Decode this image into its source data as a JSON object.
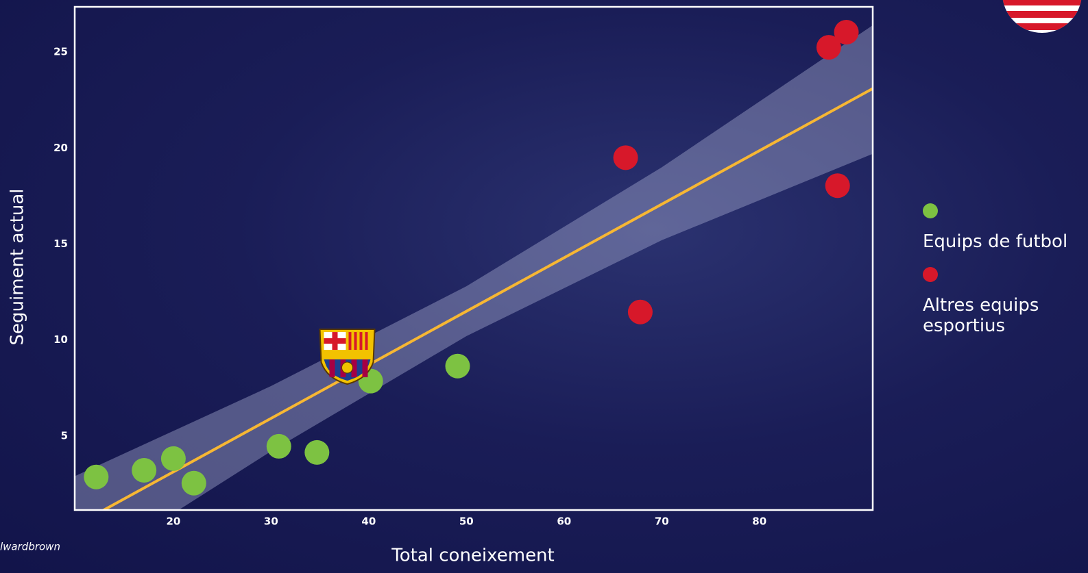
{
  "chart_data": {
    "type": "scatter",
    "x_label": "Total coneixement",
    "y_label": "Seguiment actual",
    "source": "lwardbrown",
    "xlim": [
      9.9,
      91.6
    ],
    "ylim": [
      1.14,
      27.36
    ],
    "xticks": [
      20,
      30,
      40,
      50,
      60,
      70,
      80
    ],
    "yticks": [
      5,
      10,
      15,
      20,
      25
    ],
    "grid": false,
    "legend": "right",
    "series": [
      {
        "name": "Equips de futbol",
        "color": "#7dc242",
        "x": [
          12.1,
          17.0,
          20.0,
          22.1,
          30.8,
          34.7,
          40.2,
          49.1
        ],
        "values": [
          2.86,
          3.21,
          3.82,
          2.54,
          4.46,
          4.14,
          7.86,
          8.64
        ]
      },
      {
        "name": "Altres equips esportius",
        "color": "#d7182a",
        "x": [
          66.3,
          67.8,
          88.0,
          87.1,
          88.9
        ],
        "values": [
          19.5,
          11.46,
          18.04,
          25.25,
          26.04
        ]
      }
    ],
    "highlight_point": {
      "x": 37.8,
      "y": 9.2
    },
    "fit": {
      "color": "#f7b733",
      "x": [
        9.9,
        91.6
      ],
      "y": [
        0.31,
        23.1
      ]
    },
    "band": {
      "x": [
        9.9,
        30,
        50,
        70,
        91.6
      ],
      "upper": [
        2.9,
        7.6,
        12.8,
        19.0,
        26.4
      ],
      "lower": [
        -2.3,
        4.2,
        10.2,
        15.2,
        19.7
      ]
    }
  }
}
